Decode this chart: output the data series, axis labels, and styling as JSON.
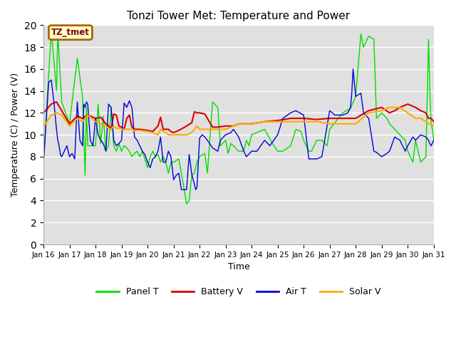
{
  "title": "Tonzi Tower Met: Temperature and Power",
  "xlabel": "Time",
  "ylabel": "Temperature (C) / Power (V)",
  "ylim": [
    0,
    20
  ],
  "yticks": [
    0,
    2,
    4,
    6,
    8,
    10,
    12,
    14,
    16,
    18,
    20
  ],
  "bg_color": "#e0e0e0",
  "annotation_label": "TZ_tmet",
  "annotation_bg": "#ffffcc",
  "annotation_border": "#aa6600",
  "annotation_text_color": "#880000",
  "legend_entries": [
    "Panel T",
    "Battery V",
    "Air T",
    "Solar V"
  ],
  "legend_colors": [
    "#00dd00",
    "#dd0000",
    "#0000dd",
    "#ffaa00"
  ],
  "x_tick_labels": [
    "Jan 16",
    "Jan 17",
    "Jan 18",
    "Jan 19",
    "Jan 20",
    "Jan 21",
    "Jan 22",
    "Jan 23",
    "Jan 24",
    "Jan 25",
    "Jan 26",
    "Jan 27",
    "Jan 28",
    "Jan 29",
    "Jan 30",
    "Jan 31"
  ],
  "panel_t_x": [
    0.0,
    0.3,
    0.5,
    0.55,
    0.7,
    1.0,
    1.3,
    1.5,
    1.6,
    1.65,
    1.7,
    2.0,
    2.1,
    2.2,
    2.3,
    2.4,
    2.5,
    2.6,
    2.7,
    2.8,
    2.9,
    3.0,
    3.1,
    3.2,
    3.3,
    3.4,
    3.5,
    3.6,
    3.7,
    3.8,
    4.0,
    4.1,
    4.2,
    4.3,
    4.4,
    4.5,
    4.6,
    4.7,
    4.8,
    4.9,
    5.0,
    5.2,
    5.3,
    5.5,
    5.6,
    5.7,
    5.8,
    5.9,
    6.0,
    6.2,
    6.3,
    6.5,
    6.7,
    6.8,
    7.0,
    7.1,
    7.2,
    7.3,
    7.5,
    7.7,
    7.8,
    7.9,
    8.0,
    8.5,
    8.8,
    9.0,
    9.2,
    9.5,
    9.7,
    9.9,
    10.0,
    10.2,
    10.3,
    10.5,
    10.7,
    10.9,
    11.0,
    11.5,
    11.8,
    12.0,
    12.2,
    12.3,
    12.5,
    12.7,
    12.8,
    13.0,
    13.2,
    13.3,
    13.5,
    13.7,
    13.9,
    14.0,
    14.2,
    14.3,
    14.5,
    14.7,
    14.8,
    14.85,
    14.9,
    14.95,
    15.0
  ],
  "panel_t_y": [
    7.4,
    19.5,
    14.0,
    19.3,
    13.0,
    11.0,
    17.0,
    13.5,
    6.3,
    12.5,
    9.0,
    9.0,
    12.8,
    9.2,
    11.7,
    8.5,
    9.0,
    12.5,
    9.0,
    8.5,
    9.2,
    8.5,
    9.0,
    8.8,
    8.5,
    8.0,
    8.3,
    8.5,
    8.0,
    8.5,
    7.0,
    8.0,
    8.5,
    8.0,
    8.2,
    7.5,
    8.0,
    7.5,
    6.5,
    7.5,
    7.5,
    7.8,
    6.5,
    3.7,
    4.0,
    6.3,
    6.5,
    7.5,
    8.0,
    8.3,
    6.5,
    13.0,
    12.5,
    9.0,
    9.5,
    8.3,
    9.2,
    9.0,
    8.5,
    8.5,
    9.5,
    9.0,
    10.0,
    10.5,
    9.2,
    8.5,
    8.5,
    9.0,
    10.5,
    10.3,
    9.5,
    8.5,
    8.5,
    9.5,
    9.5,
    9.0,
    10.5,
    12.0,
    12.4,
    13.5,
    19.2,
    18.0,
    19.0,
    18.7,
    11.5,
    12.0,
    11.5,
    11.0,
    10.5,
    10.0,
    9.5,
    8.5,
    7.5,
    9.5,
    7.5,
    8.0,
    18.7,
    14.0,
    11.0,
    10.5,
    9.5
  ],
  "battery_v_x": [
    0.0,
    0.3,
    0.5,
    0.7,
    1.0,
    1.3,
    1.5,
    1.7,
    2.0,
    2.2,
    2.4,
    2.5,
    2.6,
    2.7,
    2.8,
    2.9,
    3.0,
    3.1,
    3.2,
    3.3,
    3.4,
    3.5,
    3.6,
    3.7,
    4.0,
    4.2,
    4.4,
    4.5,
    4.6,
    4.7,
    4.8,
    4.9,
    5.0,
    5.2,
    5.5,
    5.7,
    5.8,
    5.9,
    6.0,
    6.2,
    6.5,
    6.7,
    7.0,
    7.3,
    7.5,
    7.8,
    8.0,
    8.5,
    9.0,
    9.5,
    10.0,
    10.5,
    11.0,
    11.5,
    12.0,
    12.5,
    13.0,
    13.3,
    13.5,
    13.7,
    14.0,
    14.3,
    14.5,
    14.7,
    14.8,
    14.85,
    14.9,
    15.0
  ],
  "battery_v_y": [
    12.0,
    12.8,
    13.0,
    12.2,
    11.0,
    11.7,
    11.5,
    11.8,
    11.5,
    11.6,
    11.0,
    10.8,
    10.5,
    11.9,
    11.8,
    10.8,
    10.7,
    10.5,
    11.5,
    11.8,
    10.7,
    10.5,
    10.5,
    10.5,
    10.4,
    10.3,
    10.8,
    11.6,
    10.5,
    10.5,
    10.5,
    10.3,
    10.2,
    10.4,
    10.8,
    11.1,
    12.1,
    12.0,
    12.0,
    11.9,
    10.7,
    10.7,
    10.8,
    10.8,
    11.0,
    11.0,
    11.0,
    11.2,
    11.3,
    11.5,
    11.5,
    11.4,
    11.5,
    11.5,
    11.5,
    12.2,
    12.5,
    12.0,
    12.2,
    12.5,
    12.8,
    12.5,
    12.2,
    12.0,
    11.5,
    11.5,
    11.5,
    11.2
  ],
  "air_t_x": [
    0.0,
    0.2,
    0.3,
    0.4,
    0.5,
    0.55,
    0.6,
    0.65,
    0.7,
    0.8,
    0.9,
    1.0,
    1.1,
    1.2,
    1.3,
    1.4,
    1.5,
    1.55,
    1.6,
    1.65,
    1.7,
    1.8,
    1.9,
    2.0,
    2.1,
    2.2,
    2.3,
    2.4,
    2.5,
    2.6,
    2.7,
    2.8,
    2.9,
    3.0,
    3.1,
    3.2,
    3.3,
    3.4,
    3.5,
    3.6,
    3.7,
    3.8,
    3.9,
    4.0,
    4.1,
    4.2,
    4.3,
    4.4,
    4.5,
    4.6,
    4.7,
    4.8,
    4.9,
    5.0,
    5.1,
    5.2,
    5.3,
    5.5,
    5.6,
    5.7,
    5.8,
    5.85,
    5.9,
    6.0,
    6.1,
    6.2,
    6.3,
    6.5,
    6.7,
    6.8,
    7.0,
    7.2,
    7.3,
    7.5,
    7.7,
    7.8,
    8.0,
    8.2,
    8.5,
    8.7,
    9.0,
    9.2,
    9.5,
    9.7,
    10.0,
    10.2,
    10.3,
    10.5,
    10.7,
    11.0,
    11.2,
    11.5,
    11.7,
    11.8,
    11.85,
    11.9,
    12.0,
    12.2,
    12.3,
    12.5,
    12.7,
    12.8,
    13.0,
    13.2,
    13.3,
    13.5,
    13.7,
    13.8,
    13.85,
    13.9,
    14.0,
    14.2,
    14.3,
    14.5,
    14.7,
    14.8,
    14.85,
    14.9,
    15.0
  ],
  "air_t_y": [
    7.4,
    14.8,
    15.0,
    13.0,
    10.5,
    9.5,
    9.0,
    8.2,
    8.0,
    8.5,
    9.0,
    8.0,
    8.3,
    7.8,
    13.0,
    9.5,
    9.0,
    12.8,
    12.5,
    13.0,
    12.8,
    9.5,
    9.0,
    11.5,
    10.0,
    9.5,
    9.2,
    8.5,
    12.8,
    12.5,
    9.5,
    9.0,
    9.2,
    9.5,
    12.9,
    12.5,
    13.1,
    12.5,
    9.8,
    9.5,
    9.0,
    8.5,
    8.2,
    7.5,
    7.0,
    7.8,
    8.0,
    8.5,
    9.8,
    7.5,
    7.5,
    8.5,
    8.0,
    5.9,
    6.3,
    6.5,
    5.0,
    5.0,
    8.2,
    6.4,
    5.5,
    5.0,
    5.2,
    9.7,
    10.0,
    9.8,
    9.5,
    8.8,
    8.5,
    9.5,
    10.0,
    10.2,
    10.5,
    9.8,
    8.5,
    8.0,
    8.5,
    8.5,
    9.5,
    9.0,
    10.0,
    11.5,
    12.0,
    12.2,
    11.8,
    7.8,
    7.8,
    7.8,
    8.0,
    12.2,
    11.8,
    11.8,
    12.0,
    12.5,
    13.8,
    16.0,
    13.5,
    13.8,
    12.0,
    11.5,
    8.5,
    8.4,
    8.0,
    8.3,
    8.5,
    9.8,
    9.5,
    9.0,
    8.8,
    8.5,
    9.0,
    9.8,
    9.5,
    10.0,
    9.8,
    9.5,
    9.2,
    9.0,
    9.5
  ],
  "solar_v_x": [
    0.0,
    0.3,
    0.5,
    0.7,
    1.0,
    1.3,
    1.5,
    1.7,
    2.0,
    2.2,
    2.4,
    2.5,
    2.6,
    2.7,
    2.8,
    2.9,
    3.0,
    3.1,
    3.2,
    3.3,
    3.4,
    3.5,
    3.6,
    3.7,
    4.0,
    4.2,
    4.4,
    4.5,
    4.6,
    4.7,
    4.8,
    4.9,
    5.0,
    5.2,
    5.5,
    5.7,
    5.8,
    5.9,
    6.0,
    6.2,
    6.5,
    6.7,
    7.0,
    7.3,
    7.5,
    7.8,
    8.0,
    8.5,
    9.0,
    9.5,
    10.0,
    10.5,
    11.0,
    11.5,
    12.0,
    12.5,
    13.0,
    13.3,
    13.5,
    13.7,
    14.0,
    14.3,
    14.5,
    14.7,
    14.8,
    14.85,
    14.9,
    15.0
  ],
  "solar_v_y": [
    10.7,
    11.8,
    12.0,
    11.8,
    10.8,
    11.5,
    11.2,
    11.8,
    11.2,
    11.0,
    10.8,
    10.6,
    10.5,
    10.8,
    10.6,
    10.6,
    10.5,
    10.5,
    10.5,
    10.5,
    10.5,
    10.4,
    10.4,
    10.4,
    10.3,
    10.2,
    10.0,
    10.5,
    10.3,
    10.2,
    10.0,
    10.0,
    10.0,
    10.0,
    10.0,
    10.2,
    10.5,
    10.8,
    10.5,
    10.5,
    10.5,
    10.5,
    10.5,
    10.8,
    11.0,
    11.0,
    11.0,
    11.2,
    11.2,
    11.2,
    11.2,
    11.2,
    11.0,
    11.0,
    11.0,
    12.0,
    12.2,
    12.5,
    12.5,
    12.5,
    12.0,
    11.5,
    11.5,
    11.2,
    11.0,
    11.0,
    11.0,
    10.8
  ]
}
